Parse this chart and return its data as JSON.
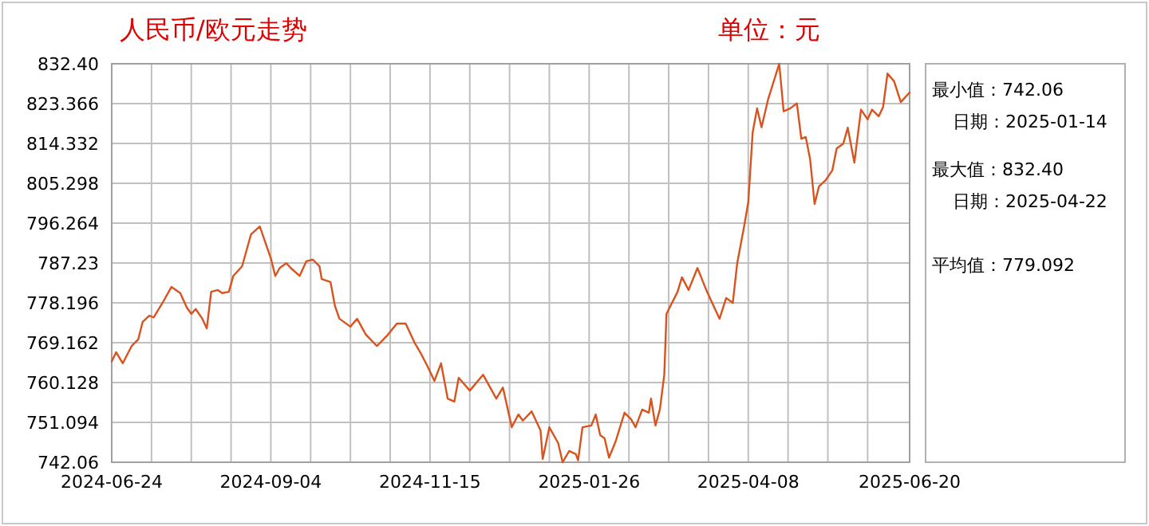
{
  "chart_data": {
    "type": "line",
    "title": "人民币/欧元走势",
    "subtitle": "单位：元",
    "annotations": [
      "最小值：742.06",
      "日期：2025-01-14",
      "最大值：832.40",
      "日期：2025-04-22",
      "平均值：779.092"
    ],
    "color": "#d9531e",
    "grid": true,
    "x": [
      "2024-06-24",
      "2024-06-26",
      "2024-06-29",
      "2024-07-03",
      "2024-07-06",
      "2024-07-08",
      "2024-07-11",
      "2024-07-13",
      "2024-07-17",
      "2024-07-21",
      "2024-07-25",
      "2024-07-28",
      "2024-07-30",
      "2024-08-01",
      "2024-08-04",
      "2024-08-06",
      "2024-08-08",
      "2024-08-11",
      "2024-08-13",
      "2024-08-16",
      "2024-08-18",
      "2024-08-22",
      "2024-08-26",
      "2024-08-30",
      "2024-09-04",
      "2024-09-06",
      "2024-09-08",
      "2024-09-11",
      "2024-09-13",
      "2024-09-17",
      "2024-09-20",
      "2024-09-23",
      "2024-09-26",
      "2024-09-27",
      "2024-10-01",
      "2024-10-03",
      "2024-10-05",
      "2024-10-10",
      "2024-10-13",
      "2024-10-17",
      "2024-10-22",
      "2024-10-27",
      "2024-10-31",
      "2024-11-04",
      "2024-11-08",
      "2024-11-11",
      "2024-11-14",
      "2024-11-17",
      "2024-11-20",
      "2024-11-23",
      "2024-11-26",
      "2024-11-28",
      "2024-12-03",
      "2024-12-09",
      "2024-12-15",
      "2024-12-18",
      "2024-12-22",
      "2024-12-25",
      "2024-12-27",
      "2024-12-31",
      "2025-01-04",
      "2025-01-05",
      "2025-01-08",
      "2025-01-12",
      "2025-01-14",
      "2025-01-17",
      "2025-01-20",
      "2025-01-21",
      "2025-01-23",
      "2025-01-27",
      "2025-01-29",
      "2025-01-31",
      "2025-02-02",
      "2025-02-04",
      "2025-02-07",
      "2025-02-11",
      "2025-02-14",
      "2025-02-16",
      "2025-02-19",
      "2025-02-22",
      "2025-02-23",
      "2025-02-25",
      "2025-02-27",
      "2025-03-01",
      "2025-03-02",
      "2025-03-07",
      "2025-03-09",
      "2025-03-12",
      "2025-03-16",
      "2025-03-20",
      "2025-03-26",
      "2025-03-29",
      "2025-04-01",
      "2025-04-03",
      "2025-04-06",
      "2025-04-08",
      "2025-04-10",
      "2025-04-12",
      "2025-04-14",
      "2025-04-17",
      "2025-04-22",
      "2025-04-24",
      "2025-04-27",
      "2025-04-30",
      "2025-05-02",
      "2025-05-04",
      "2025-05-06",
      "2025-05-08",
      "2025-05-10",
      "2025-05-13",
      "2025-05-16",
      "2025-05-18",
      "2025-05-21",
      "2025-05-23",
      "2025-05-26",
      "2025-05-29",
      "2025-06-01",
      "2025-06-03",
      "2025-06-06",
      "2025-06-08",
      "2025-06-10",
      "2025-06-13",
      "2025-06-16",
      "2025-06-20"
    ],
    "values": [
      764.9,
      767.0,
      764.5,
      768.4,
      769.9,
      773.9,
      775.3,
      774.9,
      778.2,
      781.8,
      780.4,
      777.1,
      775.7,
      776.8,
      774.6,
      772.4,
      780.7,
      781.1,
      780.4,
      780.7,
      784.3,
      786.5,
      793.7,
      795.5,
      788.3,
      784.3,
      786.1,
      787.2,
      786.1,
      784.3,
      787.6,
      788.0,
      786.5,
      783.6,
      782.9,
      777.5,
      774.6,
      772.8,
      774.6,
      771.0,
      768.4,
      771.0,
      773.5,
      773.5,
      769.2,
      766.6,
      763.7,
      760.5,
      764.5,
      756.5,
      755.8,
      761.2,
      758.3,
      761.9,
      756.5,
      759.0,
      750.0,
      752.9,
      751.5,
      753.6,
      749.3,
      742.8,
      750.0,
      746.4,
      742.06,
      744.6,
      743.9,
      742.5,
      750.0,
      750.4,
      752.9,
      748.2,
      747.5,
      743.1,
      746.8,
      753.3,
      751.8,
      750.0,
      754.0,
      753.3,
      756.5,
      750.4,
      754.0,
      761.9,
      775.7,
      780.7,
      784.0,
      781.1,
      786.1,
      781.1,
      774.6,
      779.3,
      778.2,
      787.2,
      795.2,
      801.0,
      816.9,
      822.3,
      818.0,
      824.4,
      832.4,
      821.6,
      822.3,
      823.4,
      815.4,
      815.8,
      810.7,
      800.6,
      804.6,
      806.0,
      808.2,
      813.2,
      814.3,
      817.9,
      810.0,
      822.0,
      819.8,
      822.0,
      820.5,
      822.6,
      830.2,
      828.4,
      823.7,
      825.9
    ],
    "xlim": [
      "2024-06-24",
      "2025-06-20"
    ],
    "xticks": [
      {
        "value": "2024-06-24",
        "label": "2024-06-24"
      },
      {
        "value": "2024-07-12",
        "label": null
      },
      {
        "value": "2024-07-30",
        "label": null
      },
      {
        "value": "2024-08-17",
        "label": null
      },
      {
        "value": "2024-09-04",
        "label": "2024-09-04"
      },
      {
        "value": "2024-09-22",
        "label": null
      },
      {
        "value": "2024-10-10",
        "label": null
      },
      {
        "value": "2024-10-28",
        "label": null
      },
      {
        "value": "2024-11-15",
        "label": "2024-11-15"
      },
      {
        "value": "2024-12-03",
        "label": null
      },
      {
        "value": "2024-12-21",
        "label": null
      },
      {
        "value": "2025-01-08",
        "label": null
      },
      {
        "value": "2025-01-26",
        "label": "2025-01-26"
      },
      {
        "value": "2025-02-13",
        "label": null
      },
      {
        "value": "2025-03-03",
        "label": null
      },
      {
        "value": "2025-03-21",
        "label": null
      },
      {
        "value": "2025-04-08",
        "label": "2025-04-08"
      },
      {
        "value": "2025-04-26",
        "label": null
      },
      {
        "value": "2025-05-14",
        "label": null
      },
      {
        "value": "2025-06-01",
        "label": null
      },
      {
        "value": "2025-06-20",
        "label": "2025-06-20"
      }
    ],
    "ylim": [
      742.06,
      832.4
    ],
    "yticks": [
      742.06,
      751.094,
      760.128,
      769.162,
      778.196,
      787.23,
      796.264,
      805.298,
      814.332,
      823.366,
      {
        "value": 832.4,
        "label": "832.40"
      }
    ]
  }
}
